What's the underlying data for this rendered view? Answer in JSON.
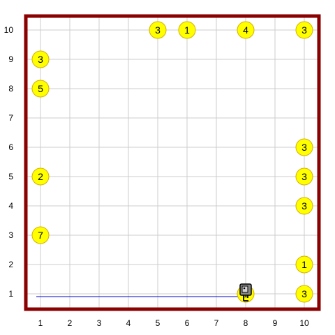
{
  "world": {
    "avenues": 10,
    "streets": 10,
    "x_labels": [
      "1",
      "2",
      "3",
      "4",
      "5",
      "6",
      "7",
      "8",
      "9",
      "10"
    ],
    "y_labels": [
      "1",
      "2",
      "3",
      "4",
      "5",
      "6",
      "7",
      "8",
      "9",
      "10"
    ],
    "colors": {
      "wall": "#8b0000",
      "grid": "#cccccc",
      "beeper_fill": "#ffff00",
      "beeper_stroke": "#d4b000",
      "trace": "#0000cc",
      "robot_body": "#888888"
    }
  },
  "beepers": [
    {
      "avenue": 5,
      "street": 10,
      "count": "3"
    },
    {
      "avenue": 6,
      "street": 10,
      "count": "1"
    },
    {
      "avenue": 8,
      "street": 10,
      "count": "4"
    },
    {
      "avenue": 10,
      "street": 10,
      "count": "3"
    },
    {
      "avenue": 1,
      "street": 9,
      "count": "3"
    },
    {
      "avenue": 1,
      "street": 8,
      "count": "5"
    },
    {
      "avenue": 10,
      "street": 6,
      "count": "3"
    },
    {
      "avenue": 1,
      "street": 5,
      "count": "2"
    },
    {
      "avenue": 10,
      "street": 5,
      "count": "3"
    },
    {
      "avenue": 10,
      "street": 4,
      "count": "3"
    },
    {
      "avenue": 1,
      "street": 3,
      "count": "7"
    },
    {
      "avenue": 10,
      "street": 2,
      "count": "1"
    },
    {
      "avenue": 8,
      "street": 1,
      "count": "1"
    },
    {
      "avenue": 10,
      "street": 1,
      "count": "3"
    }
  ],
  "robot": {
    "avenue": 8,
    "street": 1,
    "facing": "south",
    "icon": "robot-icon"
  },
  "trace": [
    {
      "avenue": 1,
      "street": 1
    },
    {
      "avenue": 8,
      "street": 1
    }
  ]
}
